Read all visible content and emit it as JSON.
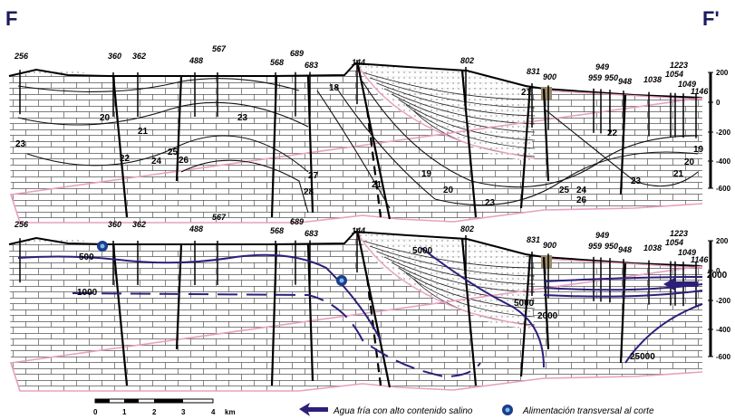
{
  "header": {
    "left": "F",
    "right": "F'"
  },
  "sections": [
    {
      "wells": [
        "256",
        "360",
        "362",
        "488",
        "567",
        "568",
        "689",
        "683",
        "144",
        "802",
        "831",
        "900",
        "949",
        "959",
        "950",
        "948",
        "1038",
        "1223",
        "1054",
        "1049",
        "1146"
      ],
      "contour_labels": [
        "20",
        "21",
        "22",
        "23",
        "24",
        "25",
        "26",
        "23",
        "18",
        "27",
        "28",
        "21",
        "19",
        "20",
        "23",
        "25",
        "24",
        "26",
        "23",
        "22",
        "19",
        "20",
        "21",
        "21"
      ],
      "elevation_ticks": [
        "200",
        "0",
        "-200",
        "-400",
        "-600"
      ]
    },
    {
      "wells": [
        "256",
        "360",
        "362",
        "488",
        "567",
        "568",
        "689",
        "683",
        "144",
        "802",
        "831",
        "900",
        "949",
        "959",
        "950",
        "948",
        "1038",
        "1223",
        "1054",
        "1049",
        "1146"
      ],
      "contour_labels": [
        "500",
        "1000",
        "5000",
        "5000",
        "2000",
        "2000",
        "25000"
      ],
      "elevation_ticks": [
        "200",
        "0",
        "-200",
        "-400",
        "-600"
      ]
    }
  ],
  "scale": {
    "ticks": [
      "0",
      "1",
      "2",
      "3",
      "4"
    ],
    "unit": "km"
  },
  "legend": [
    "Agua fría con alto contenido salino",
    "Alimentación transversal al corte"
  ]
}
